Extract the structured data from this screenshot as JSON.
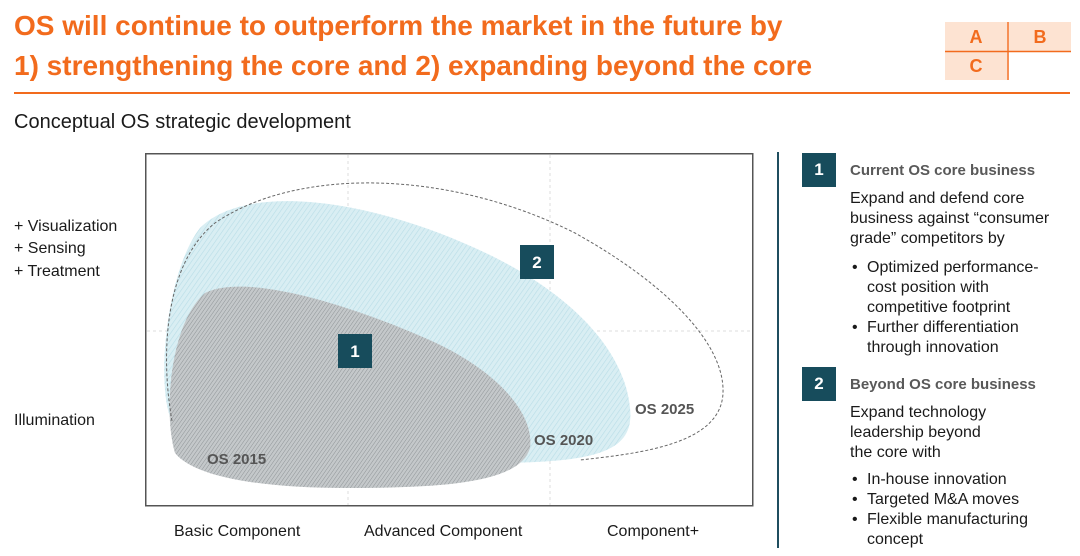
{
  "header": {
    "title_line1": "OS will continue to outperform the market in the future by",
    "title_line2": "1) strengthening the core and 2) expanding beyond the core",
    "abc_grid": [
      "A",
      "B",
      "C"
    ],
    "accent_color": "#f26b1d"
  },
  "subtitle": "Conceptual OS strategic development",
  "diagram": {
    "y_labels": [
      "+ Visualization",
      "+ Sensing",
      "+ Treatment",
      "Illumination"
    ],
    "x_labels": [
      "Basic Component",
      "Advanced Component",
      "Component+"
    ],
    "regions": [
      "OS 2015",
      "OS 2020",
      "OS 2025"
    ],
    "markers": [
      "1",
      "2"
    ]
  },
  "panel": {
    "items": [
      {
        "num": "1",
        "heading": "Current OS core business",
        "body": [
          "Expand and defend core",
          "business against “consumer",
          "grade” competitors by"
        ],
        "bullets": [
          [
            "Optimized performance-",
            "cost position with",
            "competitive footprint"
          ],
          [
            "Further differentiation",
            "through innovation"
          ]
        ]
      },
      {
        "num": "2",
        "heading": "Beyond OS core business",
        "body": [
          "Expand technology",
          "leadership beyond",
          "the core with"
        ],
        "bullets": [
          [
            "In-house innovation"
          ],
          [
            "Targeted M&A moves"
          ],
          [
            "Flexible manufacturing",
            "concept"
          ]
        ]
      }
    ],
    "badge_color": "#174c5c"
  }
}
